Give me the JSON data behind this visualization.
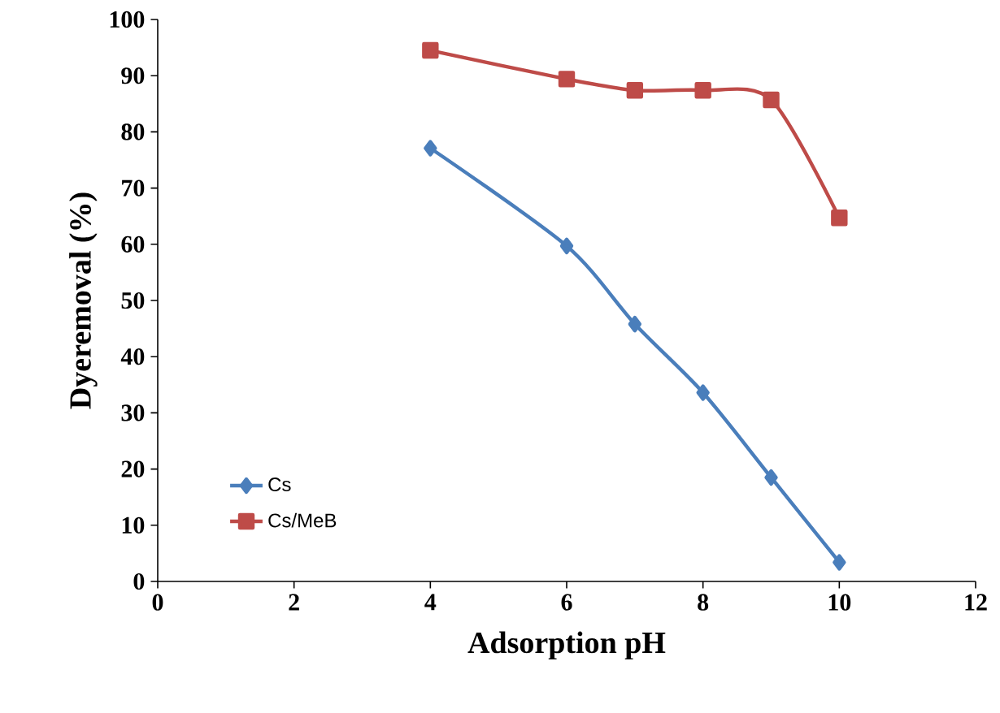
{
  "chart_data": {
    "type": "line",
    "xlabel": "Adsorption pH",
    "ylabel": "Dyeremoval (%)",
    "xlim": [
      0,
      12
    ],
    "xticks": [
      0,
      2,
      4,
      6,
      8,
      10,
      12
    ],
    "ylim": [
      0,
      100
    ],
    "yticks": [
      0,
      10,
      20,
      30,
      40,
      50,
      60,
      70,
      80,
      90,
      100
    ],
    "grid": false,
    "legend": "bottom left",
    "x": [
      4,
      6,
      7,
      8,
      9,
      10
    ],
    "series": [
      {
        "name": "Cs",
        "color": "#4a7ebb",
        "marker": "diamond",
        "values": [
          77.1,
          59.7,
          45.8,
          33.6,
          18.5,
          3.4
        ]
      },
      {
        "name": "Cs/MeB",
        "color": "#be4b48",
        "marker": "square",
        "values": [
          94.5,
          89.4,
          87.4,
          87.4,
          85.7,
          64.7
        ]
      }
    ]
  }
}
